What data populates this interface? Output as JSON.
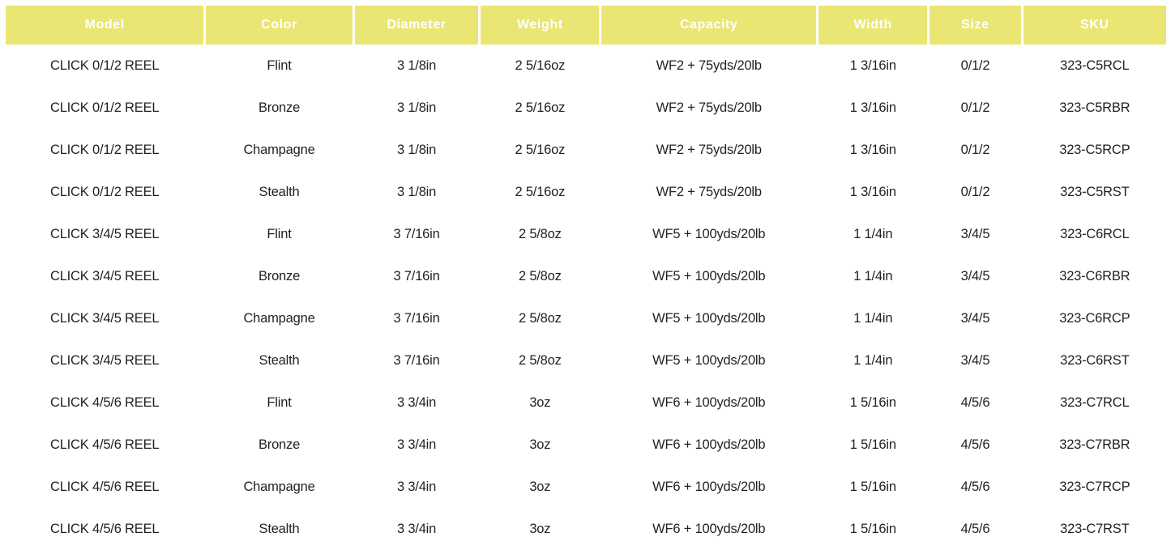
{
  "colors": {
    "header_background": "#EAE674",
    "header_text": "#FFFFFF",
    "body_text": "#231F20",
    "page_background": "#FFFFFF"
  },
  "table": {
    "columns": [
      {
        "key": "model",
        "label": "Model"
      },
      {
        "key": "color",
        "label": "Color"
      },
      {
        "key": "diameter",
        "label": "Diameter"
      },
      {
        "key": "weight",
        "label": "Weight"
      },
      {
        "key": "capacity",
        "label": "Capacity"
      },
      {
        "key": "width",
        "label": "Width"
      },
      {
        "key": "size",
        "label": "Size"
      },
      {
        "key": "sku",
        "label": "SKU"
      }
    ],
    "rows": [
      [
        "CLICK 0/1/2 REEL",
        "Flint",
        "3 1/8in",
        "2 5/16oz",
        "WF2 + 75yds/20lb",
        "1 3/16in",
        "0/1/2",
        "323-C5RCL"
      ],
      [
        "CLICK 0/1/2 REEL",
        "Bronze",
        "3 1/8in",
        "2 5/16oz",
        "WF2 + 75yds/20lb",
        "1 3/16in",
        "0/1/2",
        "323-C5RBR"
      ],
      [
        "CLICK 0/1/2 REEL",
        "Champagne",
        "3 1/8in",
        "2 5/16oz",
        "WF2 + 75yds/20lb",
        "1 3/16in",
        "0/1/2",
        "323-C5RCP"
      ],
      [
        "CLICK 0/1/2 REEL",
        "Stealth",
        "3 1/8in",
        "2 5/16oz",
        "WF2 + 75yds/20lb",
        "1 3/16in",
        "0/1/2",
        "323-C5RST"
      ],
      [
        "CLICK 3/4/5 REEL",
        "Flint",
        "3 7/16in",
        "2 5/8oz",
        "WF5 + 100yds/20lb",
        "1 1/4in",
        "3/4/5",
        "323-C6RCL"
      ],
      [
        "CLICK 3/4/5 REEL",
        "Bronze",
        "3 7/16in",
        "2 5/8oz",
        "WF5 + 100yds/20lb",
        "1 1/4in",
        "3/4/5",
        "323-C6RBR"
      ],
      [
        "CLICK 3/4/5 REEL",
        "Champagne",
        "3 7/16in",
        "2 5/8oz",
        "WF5 + 100yds/20lb",
        "1 1/4in",
        "3/4/5",
        "323-C6RCP"
      ],
      [
        "CLICK 3/4/5 REEL",
        "Stealth",
        "3 7/16in",
        "2 5/8oz",
        "WF5 + 100yds/20lb",
        "1 1/4in",
        "3/4/5",
        "323-C6RST"
      ],
      [
        "CLICK 4/5/6 REEL",
        "Flint",
        "3 3/4in",
        "3oz",
        "WF6 + 100yds/20lb",
        "1 5/16in",
        "4/5/6",
        "323-C7RCL"
      ],
      [
        "CLICK 4/5/6 REEL",
        "Bronze",
        "3 3/4in",
        "3oz",
        "WF6 + 100yds/20lb",
        "1 5/16in",
        "4/5/6",
        "323-C7RBR"
      ],
      [
        "CLICK 4/5/6 REEL",
        "Champagne",
        "3 3/4in",
        "3oz",
        "WF6 + 100yds/20lb",
        "1 5/16in",
        "4/5/6",
        "323-C7RCP"
      ],
      [
        "CLICK 4/5/6 REEL",
        "Stealth",
        "3 3/4in",
        "3oz",
        "WF6 + 100yds/20lb",
        "1 5/16in",
        "4/5/6",
        "323-C7RST"
      ]
    ]
  },
  "chart_data": {
    "type": "table",
    "title": "",
    "columns": [
      "Model",
      "Color",
      "Diameter",
      "Weight",
      "Capacity",
      "Width",
      "Size",
      "SKU"
    ],
    "rows": [
      [
        "CLICK 0/1/2 REEL",
        "Flint",
        "3 1/8in",
        "2 5/16oz",
        "WF2 + 75yds/20lb",
        "1 3/16in",
        "0/1/2",
        "323-C5RCL"
      ],
      [
        "CLICK 0/1/2 REEL",
        "Bronze",
        "3 1/8in",
        "2 5/16oz",
        "WF2 + 75yds/20lb",
        "1 3/16in",
        "0/1/2",
        "323-C5RBR"
      ],
      [
        "CLICK 0/1/2 REEL",
        "Champagne",
        "3 1/8in",
        "2 5/16oz",
        "WF2 + 75yds/20lb",
        "1 3/16in",
        "0/1/2",
        "323-C5RCP"
      ],
      [
        "CLICK 0/1/2 REEL",
        "Stealth",
        "3 1/8in",
        "2 5/16oz",
        "WF2 + 75yds/20lb",
        "1 3/16in",
        "0/1/2",
        "323-C5RST"
      ],
      [
        "CLICK 3/4/5 REEL",
        "Flint",
        "3 7/16in",
        "2 5/8oz",
        "WF5 + 100yds/20lb",
        "1 1/4in",
        "3/4/5",
        "323-C6RCL"
      ],
      [
        "CLICK 3/4/5 REEL",
        "Bronze",
        "3 7/16in",
        "2 5/8oz",
        "WF5 + 100yds/20lb",
        "1 1/4in",
        "3/4/5",
        "323-C6RBR"
      ],
      [
        "CLICK 3/4/5 REEL",
        "Champagne",
        "3 7/16in",
        "2 5/8oz",
        "WF5 + 100yds/20lb",
        "1 1/4in",
        "3/4/5",
        "323-C6RCP"
      ],
      [
        "CLICK 3/4/5 REEL",
        "Stealth",
        "3 7/16in",
        "2 5/8oz",
        "WF5 + 100yds/20lb",
        "1 1/4in",
        "3/4/5",
        "323-C6RST"
      ],
      [
        "CLICK 4/5/6 REEL",
        "Flint",
        "3 3/4in",
        "3oz",
        "WF6 + 100yds/20lb",
        "1 5/16in",
        "4/5/6",
        "323-C7RCL"
      ],
      [
        "CLICK 4/5/6 REEL",
        "Bronze",
        "3 3/4in",
        "3oz",
        "WF6 + 100yds/20lb",
        "1 5/16in",
        "4/5/6",
        "323-C7RBR"
      ],
      [
        "CLICK 4/5/6 REEL",
        "Champagne",
        "3 3/4in",
        "3oz",
        "WF6 + 100yds/20lb",
        "1 5/16in",
        "4/5/6",
        "323-C7RCP"
      ],
      [
        "CLICK 4/5/6 REEL",
        "Stealth",
        "3 3/4in",
        "3oz",
        "WF6 + 100yds/20lb",
        "1 5/16in",
        "4/5/6",
        "323-C7RST"
      ]
    ]
  }
}
